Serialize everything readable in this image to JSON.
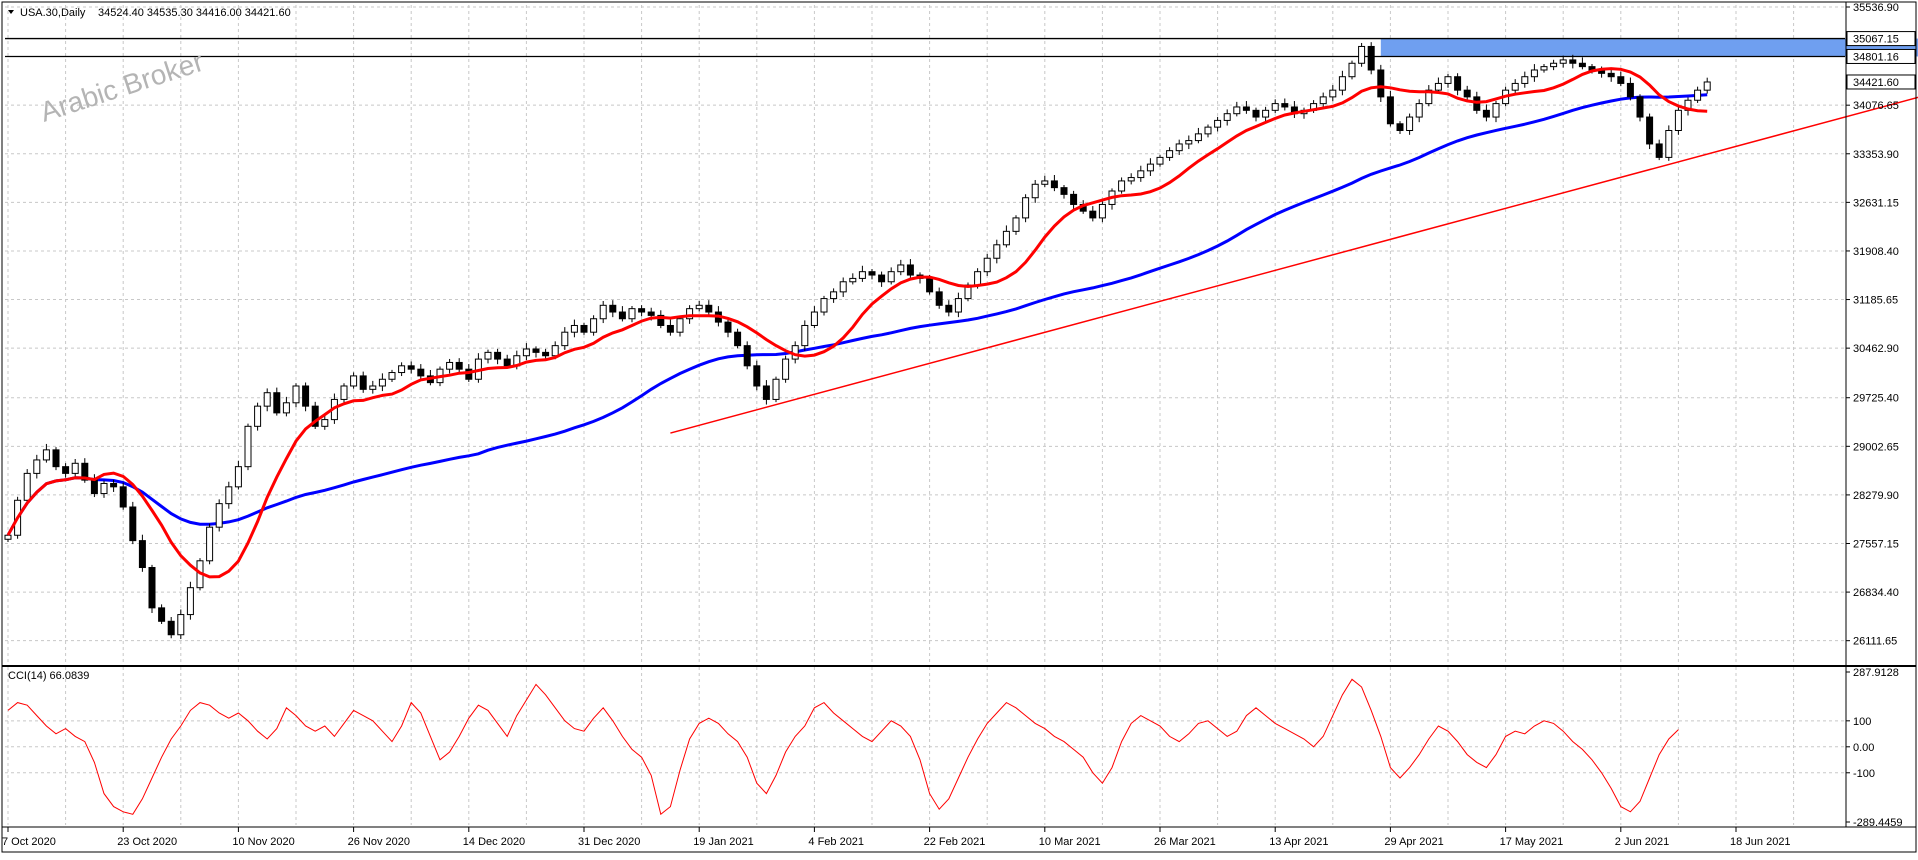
{
  "header": {
    "symbol": "USA.30,Daily",
    "ohlc": "34524.40 34535.30 34416.00 34421.60"
  },
  "watermark": "Arabic Broker",
  "colors": {
    "grid": "#c8c8c8",
    "candle": "#000000",
    "fast_ma": "#ff0000",
    "slow_ma": "#0000ff",
    "trendline": "#ff0000",
    "resistance_zone": "#6f9ff0",
    "cci": "#ff0000",
    "price_box_bg": "#ffffff"
  },
  "chart_data": [
    {
      "type": "candlestick",
      "instrument": "USA.30",
      "timeframe": "Daily",
      "ylim": [
        25750,
        35536.9
      ],
      "y_ticks": [
        "35536.90",
        "34076.65",
        "33353.90",
        "32631.15",
        "31908.40",
        "31185.65",
        "30462.90",
        "29725.40",
        "29002.65",
        "28279.90",
        "27557.15",
        "26834.40",
        "26111.65"
      ],
      "tick_values": [
        35536.9,
        34076.65,
        33353.9,
        32631.15,
        31908.4,
        31185.65,
        30462.9,
        29725.4,
        29002.65,
        28279.9,
        27557.15,
        26834.4,
        26111.65
      ],
      "price_labels": [
        {
          "label": "35067.15",
          "value": 35067.15
        },
        {
          "label": "34801.16",
          "value": 34801.16
        },
        {
          "label": "34421.60",
          "value": 34421.6
        }
      ],
      "x_tick_labels": [
        "7 Oct 2020",
        "23 Oct 2020",
        "10 Nov 2020",
        "26 Nov 2020",
        "14 Dec 2020",
        "31 Dec 2020",
        "19 Jan 2021",
        "4 Feb 2021",
        "22 Feb 2021",
        "10 Mar 2021",
        "26 Mar 2021",
        "13 Apr 2021",
        "29 Apr 2021",
        "17 May 2021",
        "2 Jun 2021",
        "18 Jun 2021"
      ],
      "x_tick_bar_index": [
        0,
        12,
        24,
        36,
        48,
        60,
        72,
        84,
        96,
        108,
        120,
        132,
        144,
        156,
        168,
        180
      ],
      "horizontal_lines": [
        35067.15,
        34801.16
      ],
      "resistance_zone": {
        "from_bar": 143,
        "to_bar": 200,
        "low": 34801.16,
        "high": 35067.15
      },
      "trendline": {
        "from_bar": 69,
        "from_price": 29200,
        "to_bar": 233,
        "to_price": 35500
      },
      "closes": [
        27680,
        28200,
        28600,
        28800,
        28950,
        28700,
        28600,
        28750,
        28500,
        28300,
        28450,
        28400,
        28100,
        27600,
        27200,
        26600,
        26400,
        26200,
        26500,
        26900,
        27300,
        27800,
        28150,
        28400,
        28700,
        29300,
        29600,
        29800,
        29500,
        29650,
        29900,
        29600,
        29300,
        29400,
        29700,
        29900,
        30050,
        29850,
        29900,
        30000,
        30100,
        30200,
        30150,
        30050,
        29950,
        30150,
        30250,
        30150,
        30000,
        30300,
        30400,
        30300,
        30200,
        30350,
        30450,
        30400,
        30350,
        30500,
        30700,
        30800,
        30700,
        30900,
        31100,
        31000,
        30900,
        31050,
        31000,
        30950,
        30800,
        30700,
        30900,
        31050,
        31100,
        31000,
        30850,
        30700,
        30500,
        30200,
        29900,
        29700,
        30000,
        30300,
        30500,
        30800,
        31000,
        31200,
        31300,
        31450,
        31500,
        31600,
        31550,
        31450,
        31600,
        31700,
        31550,
        31500,
        31300,
        31100,
        31000,
        31200,
        31400,
        31600,
        31800,
        32000,
        32200,
        32400,
        32700,
        32900,
        32950,
        32850,
        32750,
        32600,
        32500,
        32400,
        32600,
        32800,
        32950,
        33000,
        33100,
        33200,
        33300,
        33400,
        33500,
        33550,
        33650,
        33750,
        33850,
        33950,
        34050,
        34000,
        33900,
        34000,
        34100,
        34050,
        33950,
        34000,
        34100,
        34200,
        34300,
        34500,
        34700,
        34950,
        34600,
        34200,
        33800,
        33700,
        33900,
        34100,
        34300,
        34400,
        34500,
        34300,
        34200,
        34000,
        33900,
        34100,
        34300,
        34400,
        34500,
        34600,
        34650,
        34700,
        34750,
        34700,
        34650,
        34600,
        34550,
        34500,
        34400,
        34200,
        33900,
        33500,
        33300,
        33700,
        34000,
        34150,
        34300,
        34421.6
      ],
      "fast_ma_period_label": "",
      "slow_ma_period_label": ""
    },
    {
      "type": "line",
      "indicator": "CCI(14)",
      "title": "CCI(14) 66.0839",
      "ylim": [
        -289.4459,
        287.9128
      ],
      "y_ticks": [
        "287.9128",
        "100",
        "0.00",
        "-100",
        "-289.4459"
      ],
      "tick_values": [
        287.9128,
        100,
        0,
        -100,
        -289.4459
      ],
      "values": [
        140,
        170,
        160,
        120,
        80,
        50,
        70,
        40,
        20,
        -60,
        -180,
        -230,
        -250,
        -260,
        -200,
        -120,
        -40,
        30,
        80,
        140,
        170,
        160,
        130,
        110,
        130,
        100,
        60,
        30,
        70,
        150,
        120,
        80,
        60,
        80,
        40,
        90,
        140,
        120,
        100,
        60,
        20,
        80,
        170,
        130,
        40,
        -50,
        -20,
        40,
        110,
        160,
        140,
        90,
        40,
        120,
        180,
        240,
        200,
        150,
        100,
        70,
        60,
        110,
        150,
        100,
        40,
        -10,
        -40,
        -110,
        -260,
        -230,
        -90,
        30,
        90,
        110,
        90,
        50,
        20,
        -40,
        -140,
        -180,
        -110,
        -20,
        40,
        80,
        150,
        170,
        130,
        100,
        70,
        40,
        20,
        60,
        100,
        80,
        40,
        -50,
        -180,
        -240,
        -200,
        -120,
        -40,
        30,
        90,
        130,
        170,
        150,
        120,
        90,
        70,
        40,
        20,
        -10,
        -40,
        -100,
        -140,
        -80,
        20,
        90,
        120,
        100,
        80,
        40,
        20,
        50,
        90,
        100,
        70,
        40,
        60,
        120,
        150,
        120,
        90,
        70,
        50,
        30,
        0,
        40,
        120,
        200,
        260,
        230,
        140,
        40,
        -80,
        -120,
        -80,
        -30,
        30,
        80,
        60,
        20,
        -30,
        -60,
        -80,
        -30,
        40,
        60,
        50,
        80,
        100,
        90,
        60,
        20,
        -10,
        -50,
        -100,
        -160,
        -230,
        -250,
        -210,
        -120,
        -30,
        30,
        66.08
      ]
    }
  ]
}
